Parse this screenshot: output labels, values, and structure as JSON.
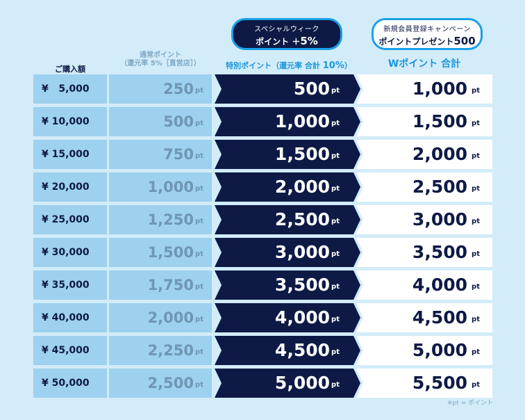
{
  "badges": {
    "special": {
      "line1": "スペシャルウィーク",
      "line2_text": "ポイント ＋",
      "line2_value": "5%"
    },
    "campaign": {
      "line1": "新規会員登録キャンペーン",
      "line2_text": "ポイントプレゼント",
      "line2_value": "500"
    }
  },
  "headers": {
    "purchase": "ご購入額",
    "normal_line1": "通常ポイント",
    "normal_line2": "（還元率 5%［直営店］）",
    "special_text": "特別ポイント（還元率 合計 ",
    "special_value": "10%",
    "special_close": "）",
    "w_total": "Wポイント 合計"
  },
  "unit": "pt",
  "rows": [
    {
      "purchase": "¥   5,000",
      "normal": "250",
      "special": "500",
      "w_total": "1,000"
    },
    {
      "purchase": "¥ 10,000",
      "normal": "500",
      "special": "1,000",
      "w_total": "1,500"
    },
    {
      "purchase": "¥ 15,000",
      "normal": "750",
      "special": "1,500",
      "w_total": "2,000"
    },
    {
      "purchase": "¥ 20,000",
      "normal": "1,000",
      "special": "2,000",
      "w_total": "2,500"
    },
    {
      "purchase": "¥ 25,000",
      "normal": "1,250",
      "special": "2,500",
      "w_total": "3,000"
    },
    {
      "purchase": "¥ 30,000",
      "normal": "1,500",
      "special": "3,000",
      "w_total": "3,500"
    },
    {
      "purchase": "¥ 35,000",
      "normal": "1,750",
      "special": "3,500",
      "w_total": "4,000"
    },
    {
      "purchase": "¥ 40,000",
      "normal": "2,000",
      "special": "4,000",
      "w_total": "4,500"
    },
    {
      "purchase": "¥ 45,000",
      "normal": "2,250",
      "special": "4,500",
      "w_total": "5,000"
    },
    {
      "purchase": "¥ 50,000",
      "normal": "2,500",
      "special": "5,000",
      "w_total": "5,500"
    }
  ],
  "note": "※pt = ポイント",
  "colors": {
    "background": "#d3ecf9",
    "light_cell": "#9dd1ef",
    "navy": "#0e1a45",
    "accent_blue": "#1aa0e8",
    "white": "#ffffff"
  }
}
